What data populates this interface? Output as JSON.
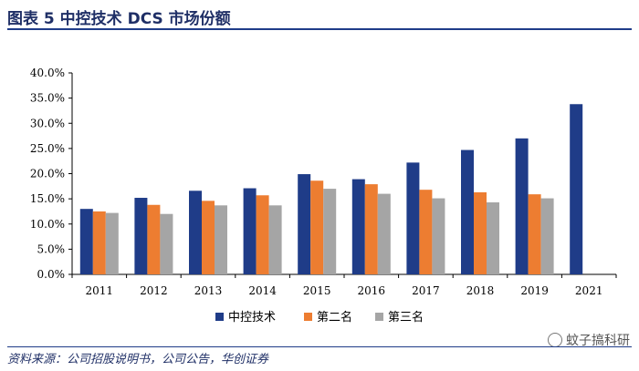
{
  "header": {
    "title": "图表 5   中控技术 DCS 市场份额"
  },
  "footer": {
    "source": "资料来源：公司招股说明书，公司公告，华创证券"
  },
  "watermark": {
    "text": "蚊子搞科研",
    "icon": "wechat-icon"
  },
  "chart_data": {
    "type": "bar",
    "categories": [
      "2011",
      "2012",
      "2013",
      "2014",
      "2015",
      "2016",
      "2017",
      "2018",
      "2019",
      "2021"
    ],
    "yticks": [
      "0.0%",
      "5.0%",
      "10.0%",
      "15.0%",
      "20.0%",
      "25.0%",
      "30.0%",
      "35.0%",
      "40.0%"
    ],
    "ylim": [
      0,
      40
    ],
    "grid": false,
    "legend_position": "bottom",
    "series": [
      {
        "name": "中控技术",
        "color": "#1f3c88",
        "values": [
          13.0,
          15.2,
          16.6,
          17.1,
          19.9,
          18.9,
          22.2,
          24.7,
          27.0,
          33.8
        ]
      },
      {
        "name": "第二名",
        "color": "#ed7d31",
        "values": [
          12.5,
          13.8,
          14.6,
          15.7,
          18.6,
          17.9,
          16.8,
          16.3,
          15.9,
          null
        ]
      },
      {
        "name": "第三名",
        "color": "#a5a5a5",
        "values": [
          12.2,
          12.0,
          13.7,
          13.7,
          17.0,
          16.0,
          15.1,
          14.3,
          15.1,
          null
        ]
      }
    ]
  }
}
